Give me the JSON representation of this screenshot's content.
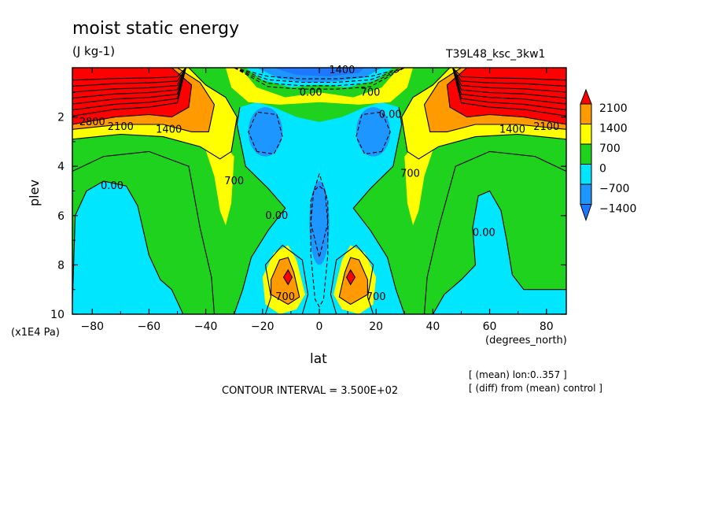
{
  "header": {
    "title": "moist static energy",
    "units": "(J kg-1)",
    "run_name": "T39L48_ksc_3kw1"
  },
  "axes": {
    "xlabel": "lat",
    "ylabel": "plev",
    "x_units": "(degrees_north)",
    "y_units": "(x1E4 Pa)"
  },
  "footer": {
    "contour_interval": "CONTOUR INTERVAL = 3.500E+02",
    "note_mean": "[ (mean) lon:0..357 ]",
    "note_diff": "[ (diff) from (mean) control ]"
  },
  "colors": {
    "below_-1400": "#1e78ff",
    "-1400_-700": "#1e96ff",
    "-700_0": "#00e6ff",
    "0_700": "#1ed21e",
    "700_1400": "#ffff00",
    "1400_2100": "#ff9a00",
    "above_2100": "#ff0000"
  },
  "chart_data": {
    "type": "contour",
    "title": "moist static energy",
    "subtitle": "(J kg-1)",
    "xlabel": "lat",
    "ylabel": "plev",
    "x_units": "(degrees_north)",
    "y_units": "(x1E4 Pa)",
    "xlim": [
      -87,
      87
    ],
    "ylim": [
      10,
      0
    ],
    "x_ticks": [
      -80,
      -60,
      -40,
      -20,
      0,
      20,
      40,
      60,
      80
    ],
    "y_ticks": [
      2,
      4,
      6,
      8,
      10
    ],
    "contour_interval": 350,
    "colorbar": {
      "levels": [
        2100,
        1400,
        700,
        0,
        -700,
        -1400
      ],
      "colors": [
        "#ff0000",
        "#ff9a00",
        "#ffff00",
        "#1ed21e",
        "#00e6ff",
        "#1e96ff",
        "#1e78ff"
      ]
    },
    "contour_labels": [
      {
        "text": "2800",
        "lat": -80,
        "plev": 2.2
      },
      {
        "text": "2100",
        "lat": -70,
        "plev": 2.4
      },
      {
        "text": "1400",
        "lat": -53,
        "plev": 2.5
      },
      {
        "text": "700",
        "lat": -30,
        "plev": 4.6
      },
      {
        "text": "0.00",
        "lat": -73,
        "plev": 4.8
      },
      {
        "text": "0.00",
        "lat": -15,
        "plev": 6.0
      },
      {
        "text": "700",
        "lat": -12,
        "plev": 9.3
      },
      {
        "text": "1400",
        "lat": 8,
        "plev": 0.1
      },
      {
        "text": "0.00",
        "lat": -3,
        "plev": 1.0
      },
      {
        "text": "700",
        "lat": 18,
        "plev": 1.0
      },
      {
        "text": "0.00",
        "lat": 25,
        "plev": 1.9
      },
      {
        "text": "1400",
        "lat": 68,
        "plev": 2.5
      },
      {
        "text": "2100",
        "lat": 80,
        "plev": 2.4
      },
      {
        "text": "700",
        "lat": 32,
        "plev": 4.3
      },
      {
        "text": "0.00",
        "lat": 58,
        "plev": 6.7
      },
      {
        "text": "700",
        "lat": 20,
        "plev": 9.3
      }
    ],
    "features": [
      {
        "name": "polar upper max south",
        "lat": -70,
        "plev": 1.0,
        "value_range": "> 2100"
      },
      {
        "name": "polar upper max north",
        "lat": 70,
        "plev": 1.0,
        "value_range": "> 2100"
      },
      {
        "name": "equatorial upper min",
        "lat": 0,
        "plev": 0.4,
        "value_range": "< -1400"
      },
      {
        "name": "subtropical lower max south",
        "lat": -11,
        "plev": 8.5,
        "value_range": "> 2100"
      },
      {
        "name": "subtropical lower max north",
        "lat": 11,
        "plev": 8.5,
        "value_range": "> 2100"
      },
      {
        "name": "subtropical upper min south",
        "lat": -20,
        "plev": 2.8,
        "value_range": "-1400 to -700"
      },
      {
        "name": "subtropical upper min north",
        "lat": 20,
        "plev": 2.8,
        "value_range": "-1400 to -700"
      },
      {
        "name": "equatorial mid min",
        "lat": 0,
        "plev": 6.2,
        "value_range": "-1400 to -700"
      },
      {
        "name": "high-latitude lower negative south",
        "lat": -70,
        "plev": 7.5,
        "value_range": "-700 to 0"
      },
      {
        "name": "high-latitude lower negative north",
        "lat": 63,
        "plev": 7.5,
        "value_range": "-700 to 0"
      }
    ]
  }
}
